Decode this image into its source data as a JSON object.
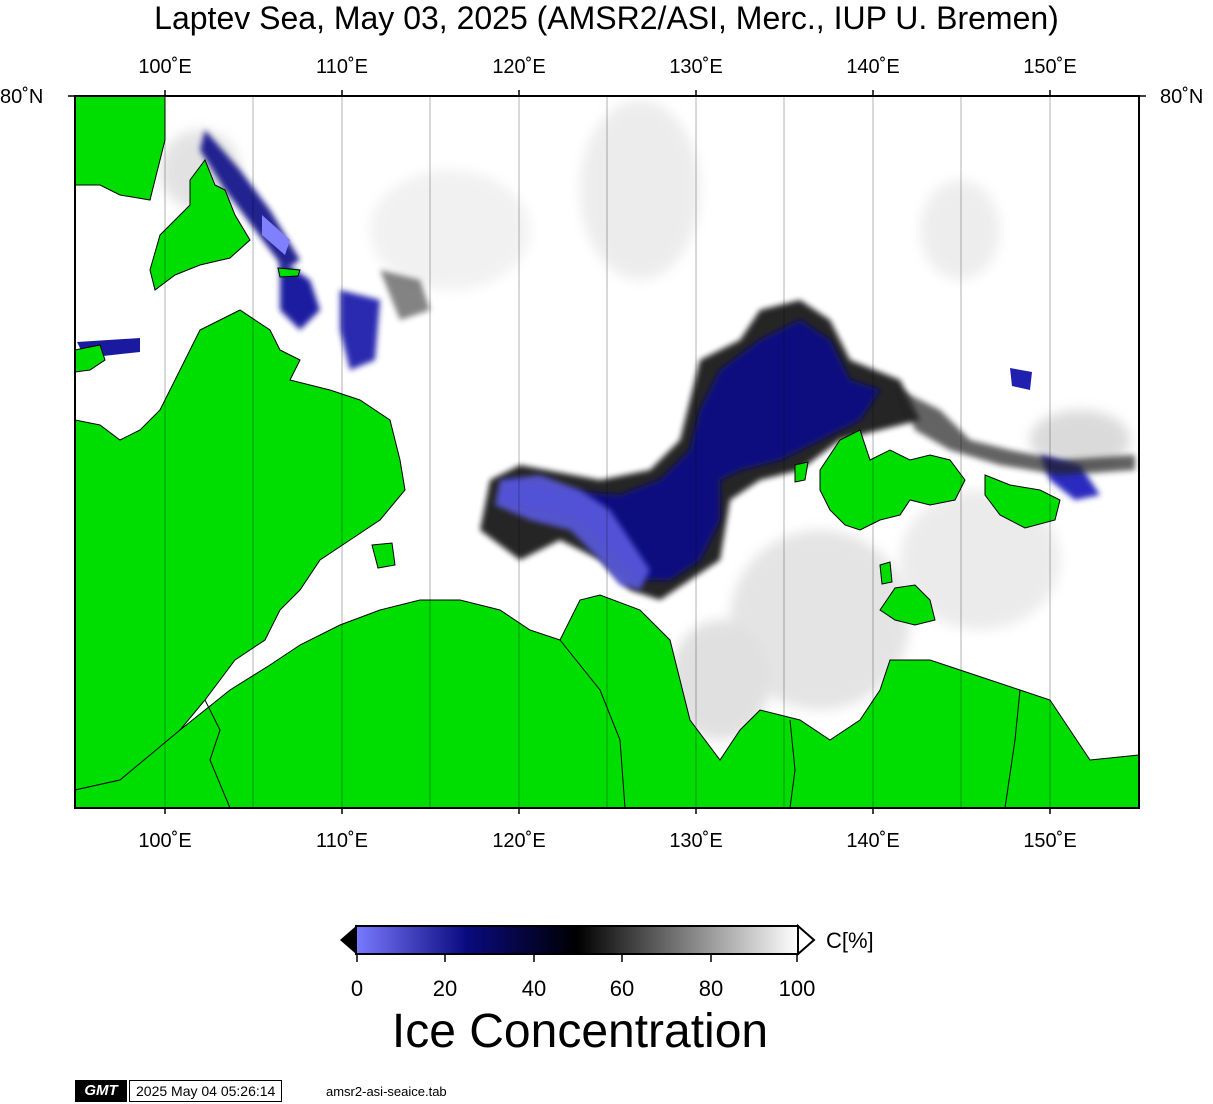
{
  "title": "Laptev Sea, May 03, 2025 (AMSR2/ASI, Merc., IUP U. Bremen)",
  "axes": {
    "lon_top": [
      "100˚E",
      "110˚E",
      "120˚E",
      "130˚E",
      "140˚E",
      "150˚E"
    ],
    "lon_bottom": [
      "100˚E",
      "110˚E",
      "120˚E",
      "130˚E",
      "140˚E",
      "150˚E"
    ],
    "lat_left": "80˚N",
    "lat_right": "80˚N"
  },
  "colors": {
    "land": "#00dd00",
    "open_ice": "#ffffff",
    "frame": "#000000"
  },
  "colorbar": {
    "unit": "C[%]",
    "ticks": [
      "0",
      "20",
      "40",
      "60",
      "80",
      "100"
    ],
    "stops": [
      "#7a7aff",
      "#0a0a80",
      "#000000",
      "#808080",
      "#ffffff"
    ]
  },
  "legend_title": "Ice Concentration",
  "footer": {
    "logo": "GMT",
    "timestamp": "2025 May 04 05:26:14",
    "filename": "amsr2-asi-seaice.tab"
  }
}
